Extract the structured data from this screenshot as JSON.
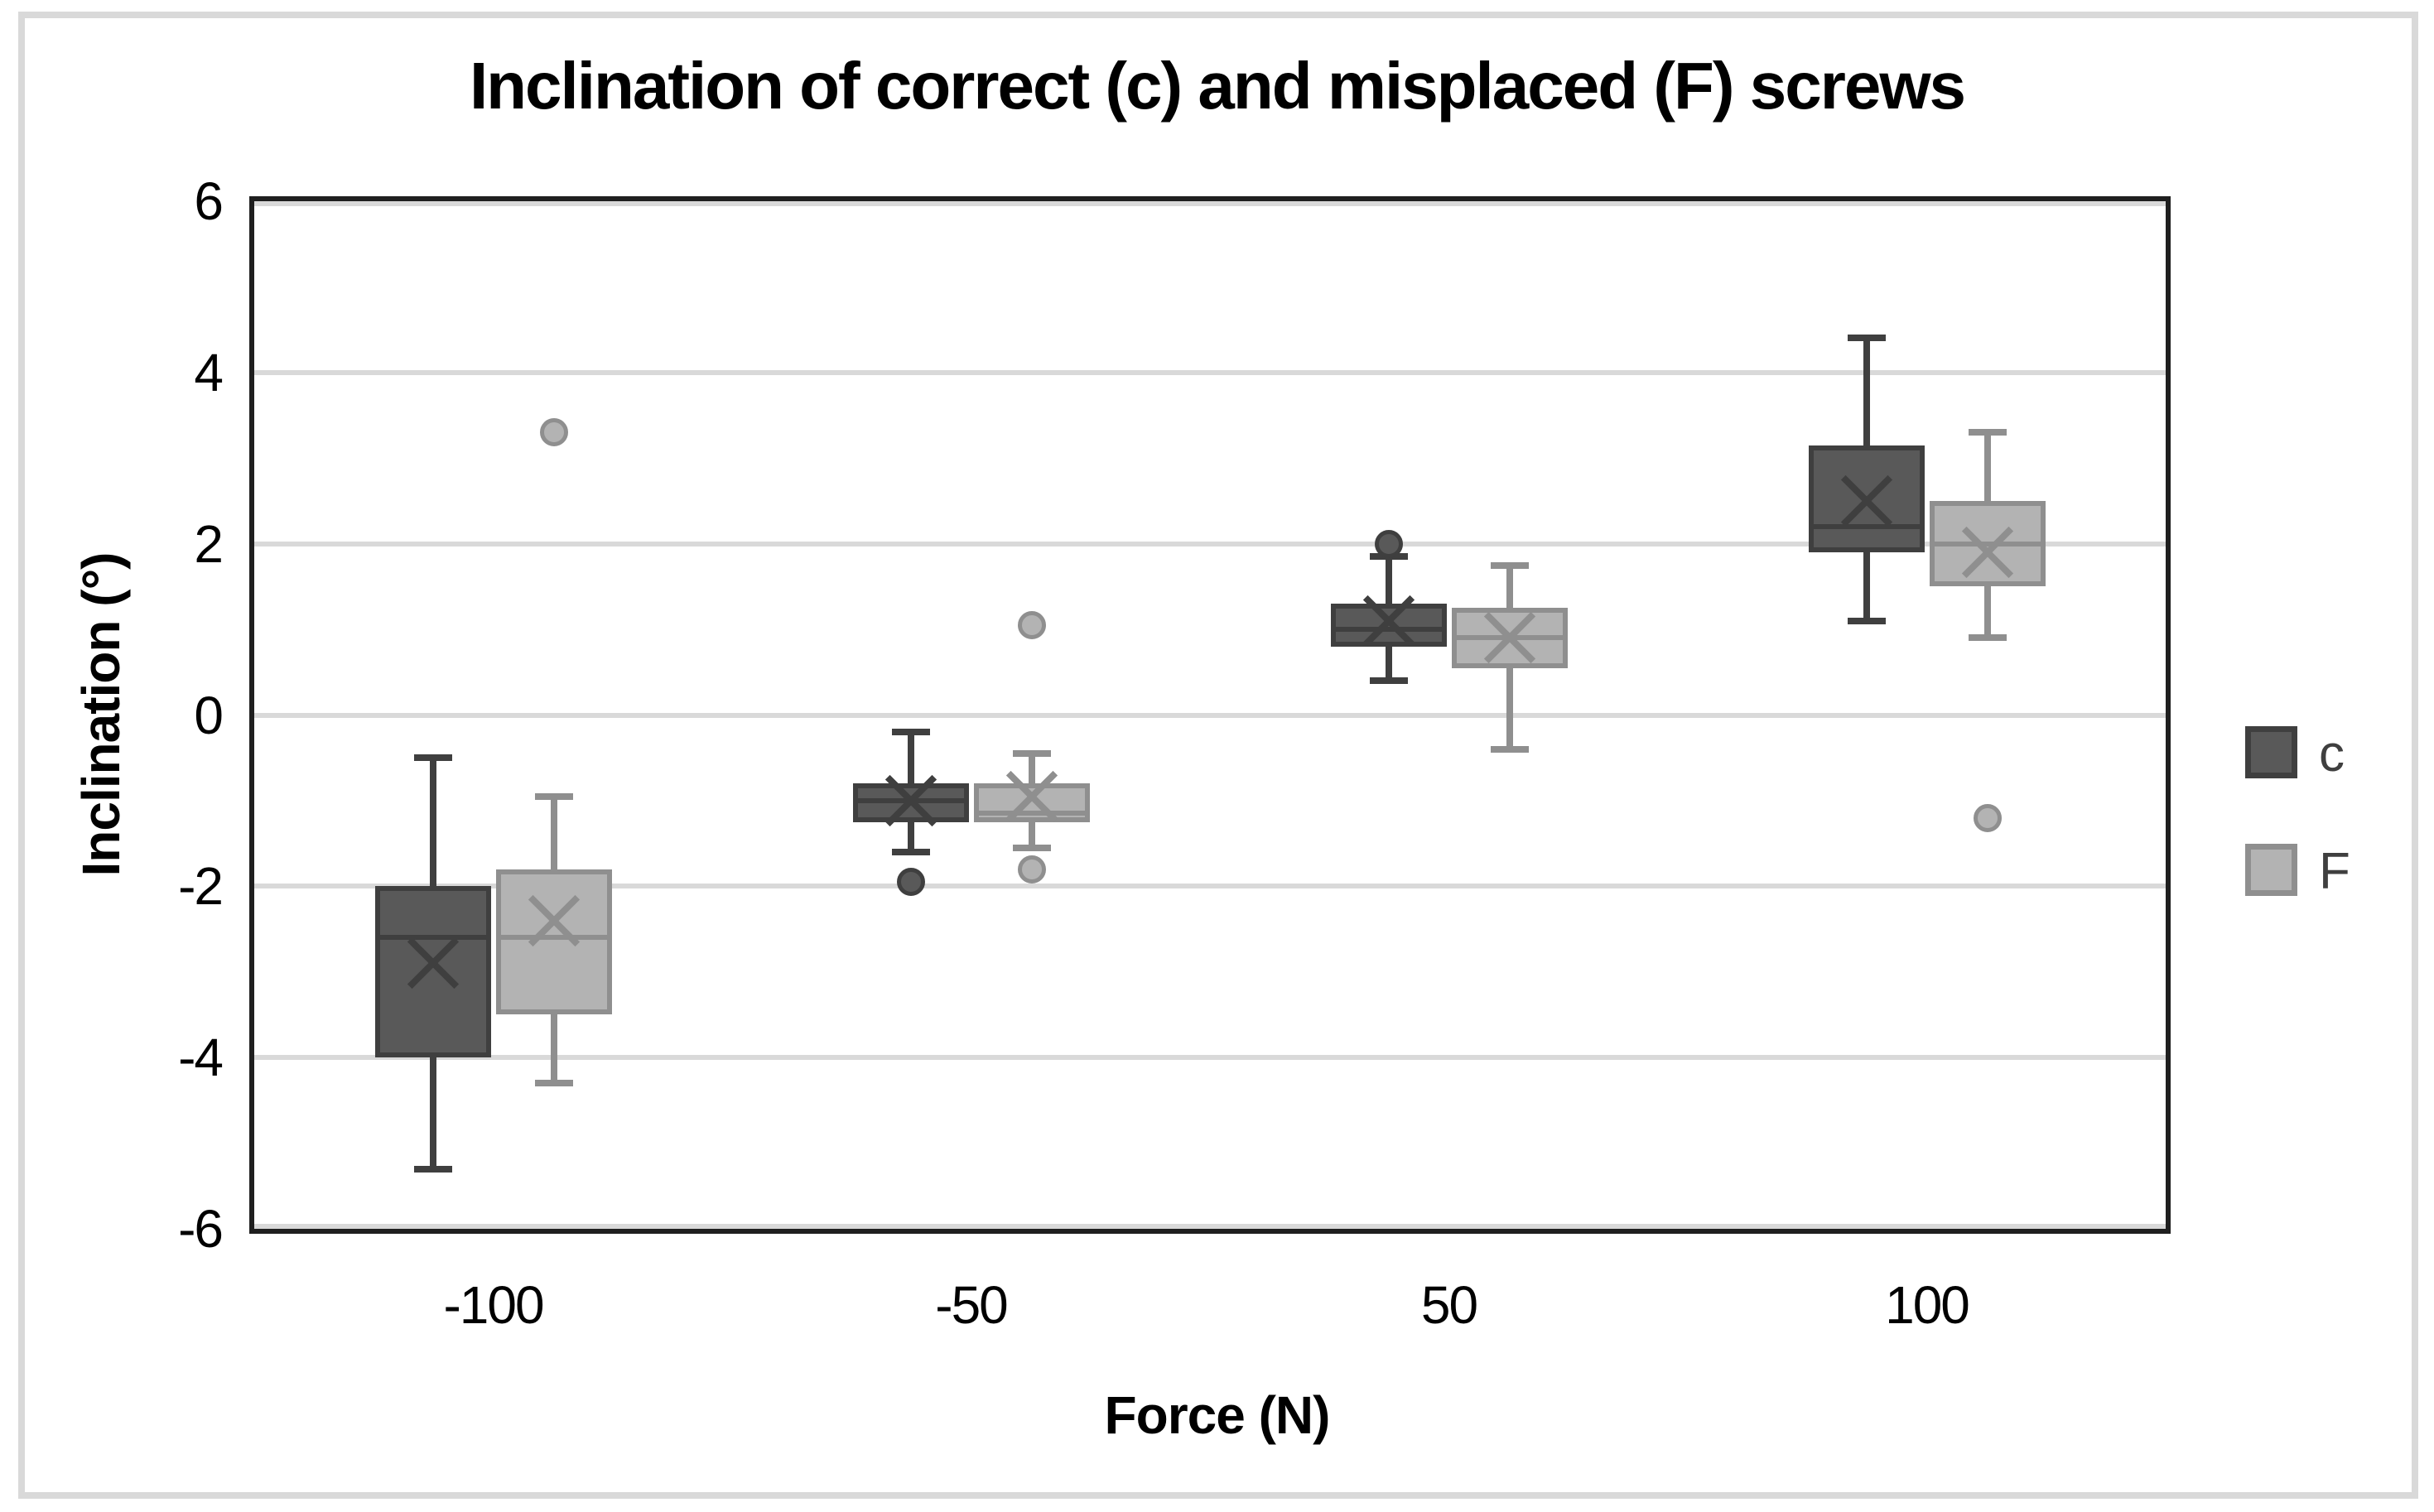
{
  "chart_data": {
    "type": "boxplot",
    "title": "Inclination of correct (c) and misplaced (F) screws",
    "xlabel": "Force (N)",
    "ylabel": "Inclination (°)",
    "ylim": [
      -6,
      6
    ],
    "yticks": [
      "6",
      "4",
      "2",
      "0",
      "-2",
      "-4",
      "-6"
    ],
    "ytick_values": [
      6,
      4,
      2,
      0,
      -2,
      -4,
      -6
    ],
    "categories": [
      "-100",
      "-50",
      "50",
      "100"
    ],
    "grid": true,
    "legend_position": "right",
    "colors": {
      "gridline": "#d9d9d9",
      "plot_border": "#1f1f1f",
      "frame": "#d9d9d9",
      "text": "#000000",
      "legend_text": "#3f3f3f"
    },
    "series": [
      {
        "name": "c",
        "fill": "#595959",
        "stroke": "#3f3f3f",
        "boxes": [
          {
            "category": "-100",
            "whisker_low": -5.3,
            "q1": -4.0,
            "median": -2.6,
            "mean": -2.9,
            "q3": -2.0,
            "whisker_high": -0.5,
            "outliers": []
          },
          {
            "category": "-50",
            "whisker_low": -1.6,
            "q1": -1.25,
            "median": -1.0,
            "mean": -1.0,
            "q3": -0.8,
            "whisker_high": -0.2,
            "outliers": [
              -1.95
            ]
          },
          {
            "category": "50",
            "whisker_low": 0.4,
            "q1": 0.8,
            "median": 1.0,
            "mean": 1.1,
            "q3": 1.3,
            "whisker_high": 1.85,
            "outliers": [
              2.0
            ]
          },
          {
            "category": "100",
            "whisker_low": 1.1,
            "q1": 1.9,
            "median": 2.2,
            "mean": 2.5,
            "q3": 3.15,
            "whisker_high": 4.4,
            "outliers": []
          }
        ]
      },
      {
        "name": "F",
        "fill": "#b3b3b3",
        "stroke": "#8f8f8f",
        "boxes": [
          {
            "category": "-100",
            "whisker_low": -4.3,
            "q1": -3.5,
            "median": -2.6,
            "mean": -2.4,
            "q3": -1.8,
            "whisker_high": -0.95,
            "outliers": [
              3.3
            ]
          },
          {
            "category": "-50",
            "whisker_low": -1.55,
            "q1": -1.25,
            "median": -1.15,
            "mean": -0.95,
            "q3": -0.8,
            "whisker_high": -0.45,
            "outliers": [
              -1.8,
              1.05
            ]
          },
          {
            "category": "50",
            "whisker_low": -0.4,
            "q1": 0.55,
            "median": 0.9,
            "mean": 0.9,
            "q3": 1.25,
            "whisker_high": 1.75,
            "outliers": []
          },
          {
            "category": "100",
            "whisker_low": 0.9,
            "q1": 1.5,
            "median": 2.0,
            "mean": 1.9,
            "q3": 2.5,
            "whisker_high": 3.3,
            "outliers": [
              -1.2
            ]
          }
        ]
      }
    ]
  }
}
